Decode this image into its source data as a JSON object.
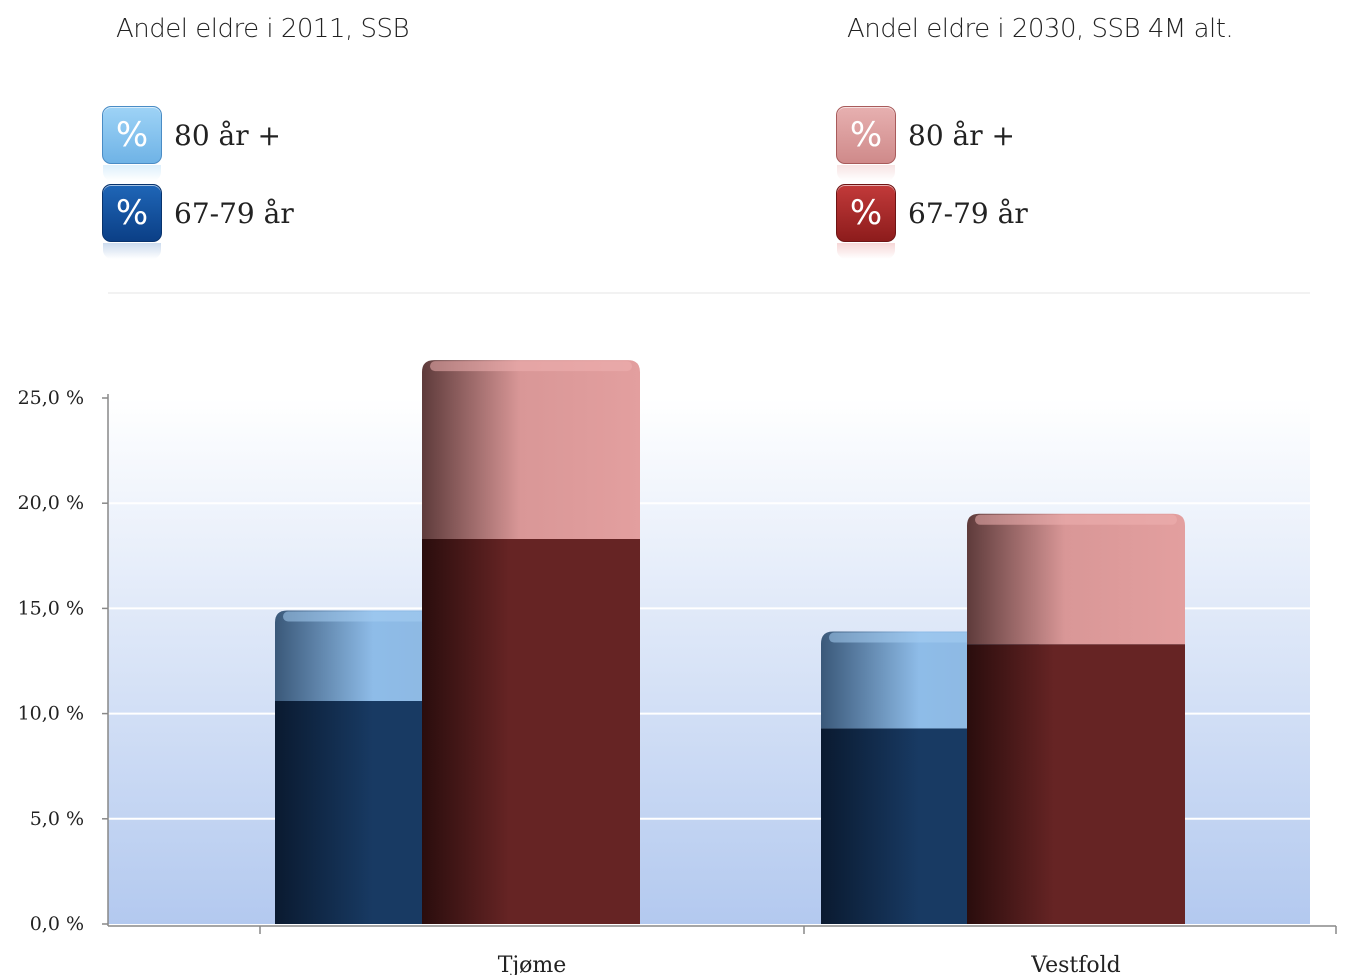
{
  "legend": {
    "group_2011": {
      "title": "Andel eldre i 2011, SSB",
      "items": [
        {
          "symbol": "%",
          "label": "80 år +"
        },
        {
          "symbol": "%",
          "label": "67-79 år"
        }
      ]
    },
    "group_2030": {
      "title": "Andel eldre i 2030, SSB 4M alt.",
      "items": [
        {
          "symbol": "%",
          "label": "80 år +"
        },
        {
          "symbol": "%",
          "label": "67-79 år"
        }
      ]
    }
  },
  "chart_data": {
    "type": "bar",
    "stacked": true,
    "categories": [
      "Tjøme",
      "Vestfold"
    ],
    "ylim": [
      0,
      25
    ],
    "yticks": [
      "0,0 %",
      "5,0 %",
      "10,0 %",
      "15,0 %",
      "20,0 %",
      "25,0 %"
    ],
    "ytick_values": [
      0,
      5,
      10,
      15,
      20,
      25
    ],
    "grid": true,
    "groups": [
      {
        "name": "Andel eldre i 2011, SSB",
        "series": [
          {
            "name": "67-79 år",
            "values": [
              10.6,
              9.3
            ],
            "color": "#183a63"
          },
          {
            "name": "80 år +",
            "values": [
              4.3,
              4.6
            ],
            "color": "#8ebce8"
          }
        ]
      },
      {
        "name": "Andel eldre i 2030, SSB 4M alt.",
        "series": [
          {
            "name": "67-79 år",
            "values": [
              18.3,
              13.3
            ],
            "color": "#662424"
          },
          {
            "name": "80 år +",
            "values": [
              8.5,
              6.2
            ],
            "color": "#de9b9b"
          }
        ]
      }
    ]
  }
}
